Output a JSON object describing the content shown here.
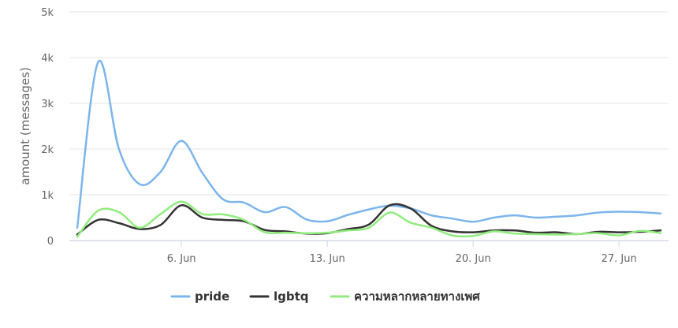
{
  "chart_data": {
    "type": "line",
    "title": "",
    "ylabel": "amount (messages)",
    "xlabel": "",
    "ylim": [
      0,
      5000
    ],
    "yticks": [
      {
        "value": 0,
        "label": "0"
      },
      {
        "value": 1000,
        "label": "1k"
      },
      {
        "value": 2000,
        "label": "2k"
      },
      {
        "value": 3000,
        "label": "3k"
      },
      {
        "value": 4000,
        "label": "4k"
      },
      {
        "value": 5000,
        "label": "5k"
      }
    ],
    "xrange": [
      1,
      29
    ],
    "xticks": [
      {
        "value": 6,
        "label": "6. Jun"
      },
      {
        "value": 13,
        "label": "13. Jun"
      },
      {
        "value": 20,
        "label": "20. Jun"
      },
      {
        "value": 27,
        "label": "27. Jun"
      }
    ],
    "grid": true,
    "legend_position": "bottom-center",
    "x": [
      1,
      2,
      3,
      4,
      5,
      6,
      7,
      8,
      9,
      10,
      11,
      12,
      13,
      14,
      15,
      16,
      17,
      18,
      19,
      20,
      21,
      22,
      23,
      24,
      25,
      26,
      27,
      28,
      29
    ],
    "series": [
      {
        "name": "pride",
        "color": "#7cb5ec",
        "values": [
          280,
          3900,
          2000,
          1230,
          1500,
          2180,
          1480,
          900,
          830,
          620,
          730,
          460,
          420,
          560,
          680,
          760,
          700,
          550,
          480,
          410,
          500,
          550,
          500,
          520,
          550,
          610,
          630,
          620,
          590
        ]
      },
      {
        "name": "lgbtq",
        "color": "#333333",
        "values": [
          130,
          450,
          380,
          250,
          340,
          770,
          500,
          450,
          420,
          230,
          200,
          150,
          160,
          250,
          350,
          770,
          700,
          320,
          200,
          180,
          220,
          220,
          170,
          180,
          140,
          190,
          180,
          190,
          220
        ]
      },
      {
        "name": "ความหลากหลายทางเพศ",
        "color": "#90ed7d",
        "values": [
          80,
          650,
          620,
          280,
          580,
          850,
          580,
          570,
          450,
          180,
          170,
          160,
          170,
          220,
          280,
          610,
          390,
          280,
          110,
          100,
          200,
          150,
          140,
          130,
          140,
          160,
          110,
          210,
          160
        ]
      }
    ]
  }
}
